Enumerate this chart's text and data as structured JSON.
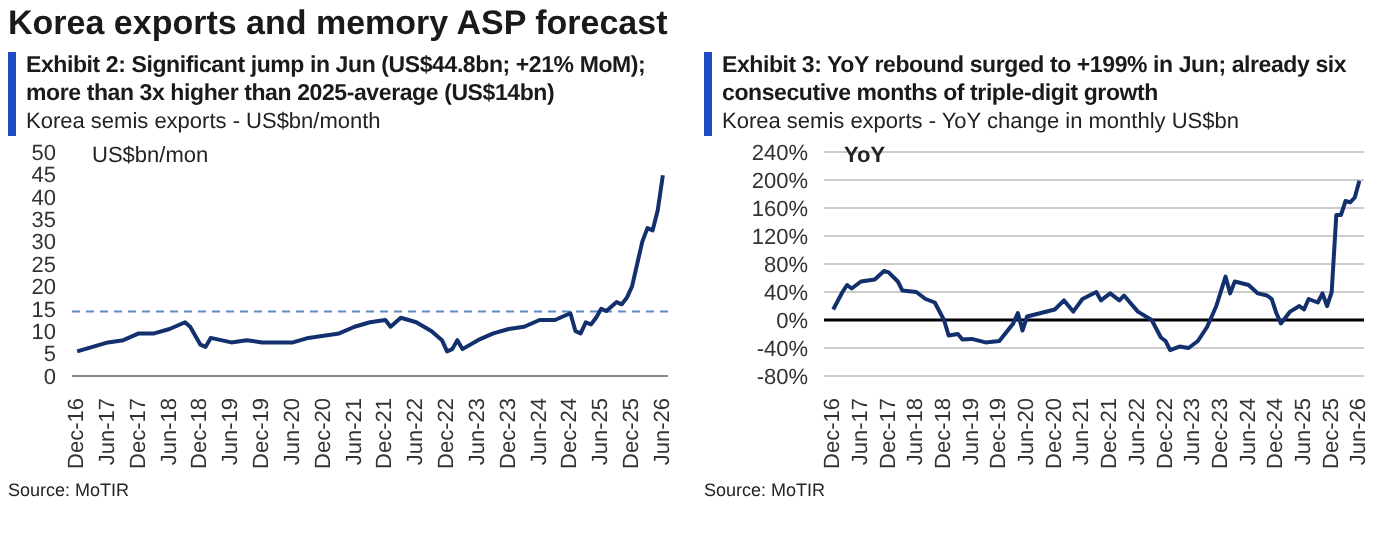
{
  "chart_data": [
    {
      "type": "line",
      "title": "Exhibit 2: Significant jump in Jun (US$44.8bn; +21% MoM); more than 3x higher than 2025-average (US$14bn)",
      "subtitle": "Korea semis exports - US$bn/month",
      "ylabel": "US$bn/mon",
      "annotations": [
        "Korea exports and memory ASP forecast",
        "Source: MoTIR"
      ],
      "x": [
        "2016-12",
        "2017-03",
        "2017-06",
        "2017-09",
        "2017-12",
        "2018-03",
        "2018-06",
        "2018-09",
        "2018-10",
        "2018-12",
        "2019-01",
        "2019-02",
        "2019-06",
        "2019-09",
        "2019-12",
        "2020-03",
        "2020-06",
        "2020-09",
        "2020-12",
        "2021-03",
        "2021-06",
        "2021-09",
        "2021-12",
        "2022-01",
        "2022-03",
        "2022-06",
        "2022-09",
        "2022-11",
        "2022-12",
        "2023-01",
        "2023-02",
        "2023-03",
        "2023-06",
        "2023-09",
        "2023-12",
        "2024-03",
        "2024-06",
        "2024-09",
        "2024-12",
        "2025-01",
        "2025-02",
        "2025-03",
        "2025-04",
        "2025-05",
        "2025-06",
        "2025-07",
        "2025-08",
        "2025-09",
        "2025-10",
        "2025-11",
        "2025-12",
        "2026-01",
        "2026-02",
        "2026-03",
        "2026-04",
        "2026-05",
        "2026-06"
      ],
      "series": [
        {
          "color": "#13306e",
          "values": [
            5.5,
            6.5,
            7.5,
            8,
            9.5,
            9.5,
            10.5,
            12,
            11,
            7,
            6.5,
            8.5,
            7.5,
            8,
            7.5,
            7.5,
            7.5,
            8.5,
            9,
            9.5,
            11,
            12,
            12.5,
            11,
            13,
            12,
            10,
            8,
            5.5,
            6,
            8,
            6,
            8,
            9.5,
            10.5,
            11,
            12.5,
            12.5,
            14,
            10,
            9.5,
            12,
            11.5,
            13,
            15,
            14.5,
            15.5,
            16.5,
            16,
            17.5,
            20,
            25,
            30,
            33,
            32.5,
            37,
            44.8
          ]
        }
      ],
      "xlim": [
        "2016-11",
        "2026-07"
      ],
      "xticks": [
        {
          "value": "2016-12",
          "label": "Dec-16"
        },
        {
          "value": "2017-06",
          "label": "Jun-17"
        },
        {
          "value": "2017-12",
          "label": "Dec-17"
        },
        {
          "value": "2018-06",
          "label": "Jun-18"
        },
        {
          "value": "2018-12",
          "label": "Dec-18"
        },
        {
          "value": "2019-06",
          "label": "Jun-19"
        },
        {
          "value": "2019-12",
          "label": "Dec-19"
        },
        {
          "value": "2020-06",
          "label": "Jun-20"
        },
        {
          "value": "2020-12",
          "label": "Dec-20"
        },
        {
          "value": "2021-06",
          "label": "Jun-21"
        },
        {
          "value": "2021-12",
          "label": "Dec-21"
        },
        {
          "value": "2022-06",
          "label": "Jun-22"
        },
        {
          "value": "2022-12",
          "label": "Dec-22"
        },
        {
          "value": "2023-06",
          "label": "Jun-23"
        },
        {
          "value": "2023-12",
          "label": "Dec-23"
        },
        {
          "value": "2024-06",
          "label": "Jun-24"
        },
        {
          "value": "2024-12",
          "label": "Dec-24"
        },
        {
          "value": "2025-06",
          "label": "Jun-25"
        },
        {
          "value": "2025-12",
          "label": "Dec-25"
        },
        {
          "value": "2026-06",
          "label": "Jun-26"
        }
      ],
      "ylim": [
        0,
        50
      ],
      "yticks": [
        0,
        5,
        10,
        15,
        20,
        25,
        30,
        35,
        40,
        45,
        50
      ],
      "grid": false,
      "marker": "none",
      "ref_lines": [
        {
          "axis": "y",
          "value": 14.4,
          "color": "#5b8ac6",
          "line_style": "dashed"
        }
      ]
    },
    {
      "type": "line",
      "title": "Exhibit 3: YoY rebound surged to +199% in Jun; already six consecutive months of triple-digit growth",
      "subtitle": "Korea semis exports - YoY change in monthly US$bn",
      "ylabel": "YoY",
      "annotations": [
        "Source: MoTIR"
      ],
      "x": [
        "2016-12",
        "2017-02",
        "2017-03",
        "2017-04",
        "2017-06",
        "2017-09",
        "2017-11",
        "2017-12",
        "2018-02",
        "2018-03",
        "2018-06",
        "2018-08",
        "2018-10",
        "2018-12",
        "2019-01",
        "2019-03",
        "2019-04",
        "2019-06",
        "2019-09",
        "2019-12",
        "2020-03",
        "2020-04",
        "2020-05",
        "2020-06",
        "2020-09",
        "2020-12",
        "2021-02",
        "2021-04",
        "2021-06",
        "2021-09",
        "2021-10",
        "2021-12",
        "2022-02",
        "2022-03",
        "2022-06",
        "2022-09",
        "2022-11",
        "2022-12",
        "2023-01",
        "2023-03",
        "2023-05",
        "2023-07",
        "2023-09",
        "2023-11",
        "2024-01",
        "2024-02",
        "2024-03",
        "2024-06",
        "2024-08",
        "2024-10",
        "2024-11",
        "2024-12",
        "2025-01",
        "2025-03",
        "2025-05",
        "2025-06",
        "2025-07",
        "2025-09",
        "2025-10",
        "2025-11",
        "2025-12",
        "2026-01",
        "2026-02",
        "2026-03",
        "2026-04",
        "2026-05",
        "2026-06"
      ],
      "series": [
        {
          "color": "#13306e",
          "values": [
            15,
            40,
            50,
            45,
            55,
            58,
            70,
            68,
            55,
            42,
            40,
            30,
            25,
            0,
            -22,
            -20,
            -28,
            -27,
            -32,
            -30,
            -5,
            10,
            -15,
            5,
            10,
            15,
            28,
            12,
            30,
            40,
            28,
            38,
            28,
            35,
            12,
            0,
            -25,
            -30,
            -43,
            -38,
            -40,
            -30,
            -10,
            20,
            62,
            38,
            55,
            50,
            38,
            35,
            30,
            10,
            -5,
            12,
            20,
            15,
            30,
            25,
            38,
            20,
            40,
            150,
            150,
            170,
            168,
            175,
            199
          ]
        }
      ],
      "xlim": [
        "2016-10",
        "2026-07"
      ],
      "xticks": [
        {
          "value": "2016-12",
          "label": "Dec-16"
        },
        {
          "value": "2017-06",
          "label": "Jun-17"
        },
        {
          "value": "2017-12",
          "label": "Dec-17"
        },
        {
          "value": "2018-06",
          "label": "Jun-18"
        },
        {
          "value": "2018-12",
          "label": "Dec-18"
        },
        {
          "value": "2019-06",
          "label": "Jun-19"
        },
        {
          "value": "2019-12",
          "label": "Dec-19"
        },
        {
          "value": "2020-06",
          "label": "Jun-20"
        },
        {
          "value": "2020-12",
          "label": "Dec-20"
        },
        {
          "value": "2021-06",
          "label": "Jun-21"
        },
        {
          "value": "2021-12",
          "label": "Dec-21"
        },
        {
          "value": "2022-06",
          "label": "Jun-22"
        },
        {
          "value": "2022-12",
          "label": "Dec-22"
        },
        {
          "value": "2023-06",
          "label": "Jun-23"
        },
        {
          "value": "2023-12",
          "label": "Dec-23"
        },
        {
          "value": "2024-06",
          "label": "Jun-24"
        },
        {
          "value": "2024-12",
          "label": "Dec-24"
        },
        {
          "value": "2025-06",
          "label": "Jun-25"
        },
        {
          "value": "2025-12",
          "label": "Dec-25"
        },
        {
          "value": "2026-06",
          "label": "Jun-26"
        }
      ],
      "ylim": [
        -80,
        240
      ],
      "yticks": [
        {
          "value": -80,
          "label": "-80%"
        },
        {
          "value": -40,
          "label": "-40%"
        },
        {
          "value": 0,
          "label": "0%"
        },
        {
          "value": 40,
          "label": "40%"
        },
        {
          "value": 80,
          "label": "80%"
        },
        {
          "value": 120,
          "label": "120%"
        },
        {
          "value": 160,
          "label": "160%"
        },
        {
          "value": 200,
          "label": "200%"
        },
        {
          "value": 240,
          "label": "240%"
        }
      ],
      "grid": "y",
      "marker": "none",
      "ref_lines": [
        {
          "axis": "y",
          "value": 0,
          "color": "#000000",
          "line_style": "solid"
        }
      ]
    }
  ]
}
